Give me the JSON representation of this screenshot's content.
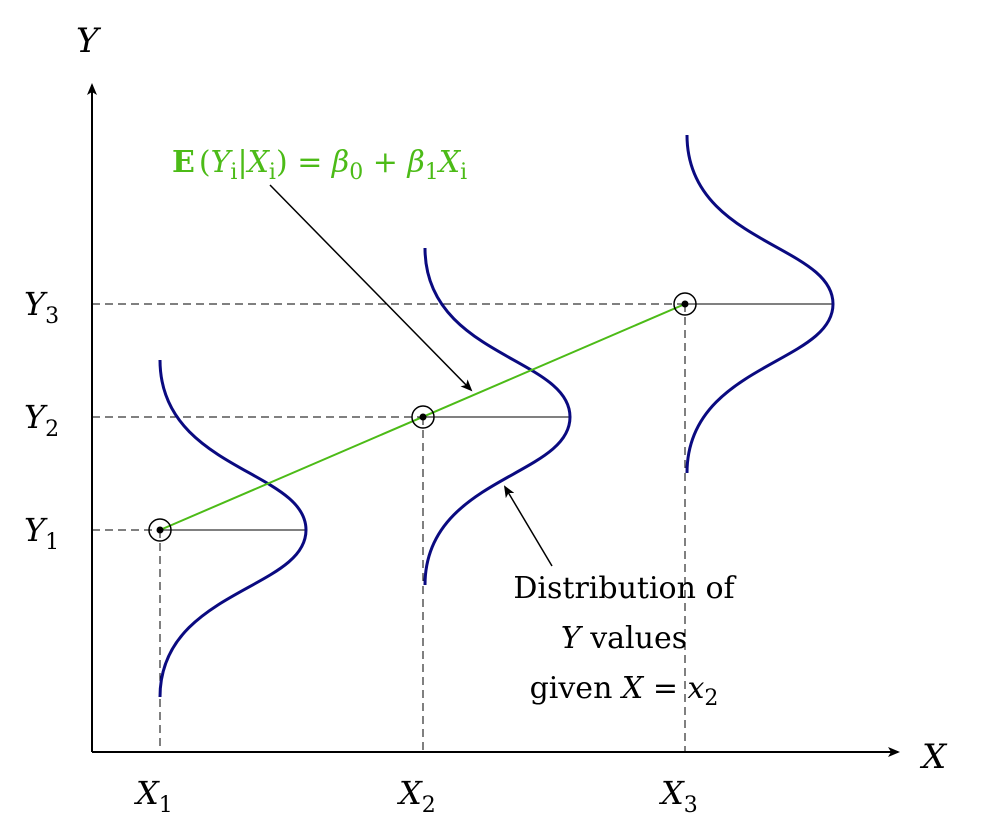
{
  "axes": {
    "x_label": "X",
    "y_label": "Y",
    "x_ticks": [
      {
        "base": "X",
        "sub": "1"
      },
      {
        "base": "X",
        "sub": "2"
      },
      {
        "base": "X",
        "sub": "3"
      }
    ],
    "y_ticks": [
      {
        "base": "Y",
        "sub": "1"
      },
      {
        "base": "Y",
        "sub": "2"
      },
      {
        "base": "Y",
        "sub": "3"
      }
    ]
  },
  "regression": {
    "bold_E": "E",
    "expression_parts": [
      "(",
      "Y",
      "i",
      "|",
      "X",
      "i",
      ") = ",
      "β",
      "0",
      " + ",
      "β",
      "1",
      "X",
      "i"
    ],
    "color": "#4cbb17"
  },
  "distribution_annotation": {
    "line1": "Distribution of",
    "line2_var": "Y",
    "line2_rest": " values",
    "line3_pre": "given ",
    "line3_var": "X",
    "line3_eq": " = ",
    "line3_x": "x",
    "line3_sub": "2"
  },
  "colors": {
    "curve": "#0a0a80",
    "axes": "#000000"
  }
}
